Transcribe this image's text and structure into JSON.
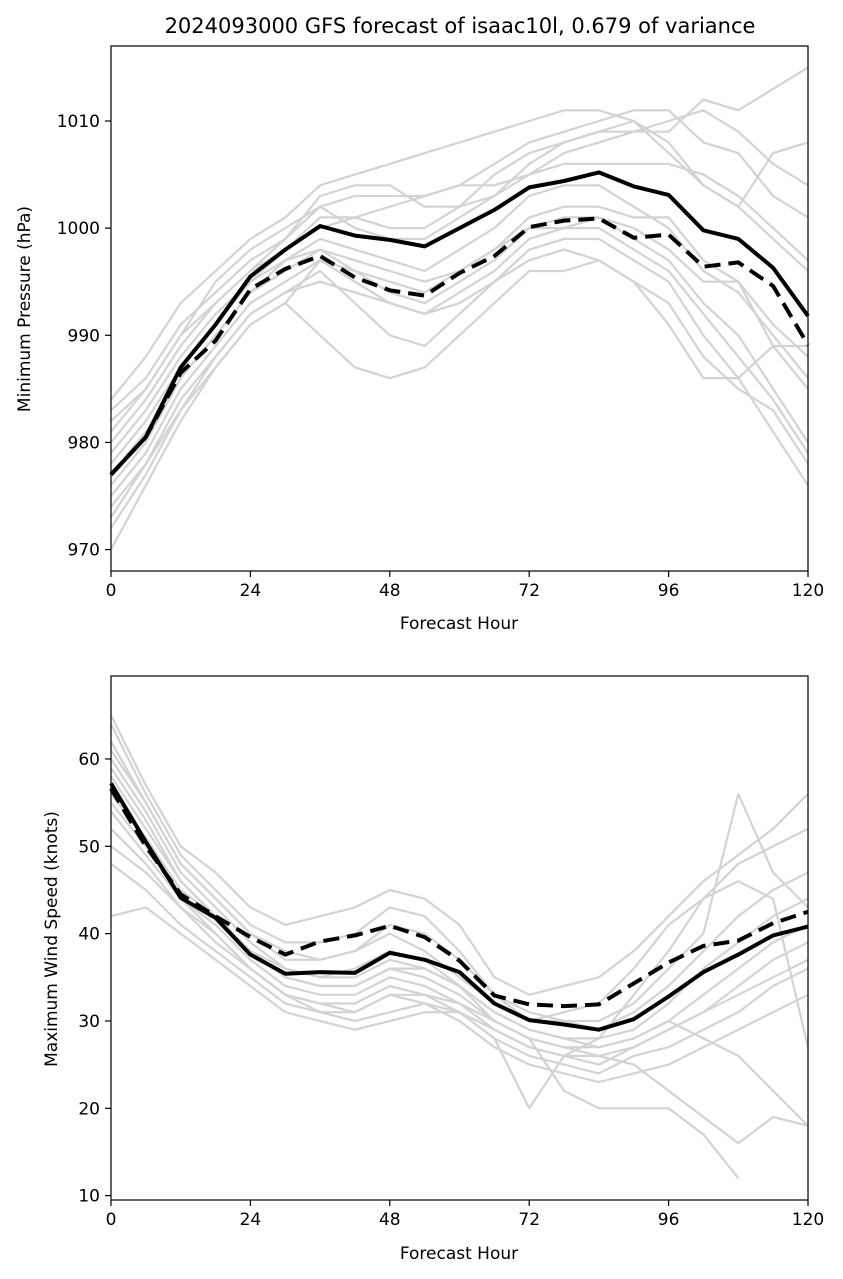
{
  "title": "2024093000 GFS forecast of isaac10l, 0.679 of variance",
  "chart_data": [
    {
      "type": "line",
      "xlabel": "Forecast Hour",
      "ylabel": "Minimum Pressure (hPa)",
      "xlim": [
        0,
        120
      ],
      "ylim": [
        968,
        1017
      ],
      "xticks": [
        0,
        24,
        48,
        72,
        96,
        120
      ],
      "yticks": [
        970,
        980,
        990,
        1000,
        1010
      ],
      "x": [
        0,
        6,
        12,
        18,
        24,
        30,
        36,
        42,
        48,
        54,
        60,
        66,
        72,
        78,
        84,
        90,
        96,
        102,
        108,
        114,
        120
      ],
      "series": [
        {
          "style": "solid-black",
          "values": [
            977,
            980.5,
            987,
            991,
            995.5,
            998,
            1000.2,
            999.3,
            998.9,
            998.3,
            1000,
            1001.7,
            1003.8,
            1004.4,
            1005.2,
            1003.9,
            1003.1,
            999.8,
            999,
            996.3,
            991.8
          ]
        },
        {
          "style": "dashed-black",
          "values": [
            977,
            980.5,
            986.5,
            989.5,
            994.3,
            996.2,
            997.4,
            995.4,
            994.2,
            993.7,
            995.8,
            997.4,
            1000.1,
            1000.7,
            1000.9,
            999.1,
            999.4,
            996.4,
            996.8,
            994.6,
            989.1
          ]
        },
        {
          "style": "grey-ensemble",
          "values": [
            983,
            986,
            991,
            994,
            997,
            999,
            1002,
            1003,
            1003,
            1003,
            1004,
            1006,
            1008,
            1009,
            1010,
            1011,
            1011,
            1008,
            1007,
            1003,
            1001
          ]
        },
        {
          "style": "grey-ensemble",
          "values": [
            981,
            985,
            990,
            993,
            996,
            998,
            1001,
            1001,
            1000,
            1000,
            1002,
            1005,
            1007,
            1008,
            1009,
            1010,
            1008,
            1004,
            1002,
            999,
            996
          ]
        },
        {
          "style": "grey-ensemble",
          "values": [
            979,
            983,
            988,
            992,
            995,
            997,
            999,
            998,
            997,
            996,
            998,
            1000,
            1003,
            1004,
            1004,
            1002,
            1000,
            996,
            994,
            990,
            986
          ]
        },
        {
          "style": "grey-ensemble",
          "values": [
            976,
            980,
            986,
            990,
            994,
            996,
            998,
            996,
            994,
            993,
            995,
            997,
            1000,
            1000,
            1001,
            999,
            997,
            993,
            990,
            985,
            980
          ]
        },
        {
          "style": "grey-ensemble",
          "values": [
            974,
            978,
            984,
            988,
            992,
            994,
            996,
            993,
            990,
            989,
            992,
            995,
            998,
            999,
            999,
            997,
            995,
            990,
            986,
            981,
            976
          ]
        },
        {
          "style": "grey-ensemble",
          "values": [
            972,
            977,
            983,
            987,
            991,
            993,
            990,
            987,
            986,
            987,
            990,
            993,
            996,
            996,
            997,
            995,
            993,
            988,
            985,
            983,
            978
          ]
        },
        {
          "style": "grey-ensemble",
          "values": [
            978,
            982,
            987,
            991,
            995,
            998,
            1000,
            1001,
            1002,
            1003,
            1004,
            1004,
            1005,
            1006,
            1006,
            1006,
            1006,
            1005,
            1003,
            1000,
            997
          ]
        },
        {
          "style": "grey-ensemble",
          "values": [
            980,
            984,
            989,
            993,
            996,
            999,
            1003,
            1004,
            1004,
            1002,
            1002,
            1003,
            1005,
            1007,
            1008,
            1009,
            1010,
            1011,
            1009,
            1006,
            1004
          ]
        },
        {
          "style": "grey-ensemble",
          "values": [
            982,
            985,
            990,
            995,
            998,
            1000,
            1002,
            1000,
            999,
            999,
            1001,
            1003,
            1006,
            1008,
            1009,
            1009,
            1009,
            1012,
            1011,
            1013,
            1015
          ]
        },
        {
          "style": "grey-ensemble",
          "values": [
            975,
            979,
            985,
            989,
            993,
            995,
            997,
            995,
            993,
            992,
            994,
            996,
            999,
            1000,
            1000,
            998,
            996,
            992,
            988,
            984,
            979
          ]
        },
        {
          "style": "grey-ensemble",
          "values": [
            984,
            988,
            993,
            996,
            999,
            1001,
            1004,
            1005,
            1006,
            1007,
            1008,
            1009,
            1010,
            1011,
            1011,
            1010,
            1007,
            1004,
            1002,
            1007,
            1008
          ]
        },
        {
          "style": "grey-ensemble",
          "values": [
            977,
            981,
            986,
            990,
            994,
            997,
            998,
            997,
            996,
            995,
            996,
            998,
            1001,
            1002,
            1002,
            1001,
            1001,
            997,
            995,
            989,
            985
          ]
        },
        {
          "style": "grey-ensemble",
          "values": [
            973,
            978,
            983,
            988,
            992,
            994,
            995,
            994,
            993,
            992,
            993,
            995,
            997,
            998,
            997,
            995,
            991,
            986,
            986,
            989,
            989
          ]
        },
        {
          "style": "grey-ensemble",
          "values": [
            970,
            976,
            982,
            987,
            991,
            993,
            997,
            996,
            995,
            994,
            996,
            998,
            1000,
            1001,
            1001,
            1000,
            998,
            995,
            995,
            991,
            988
          ]
        }
      ]
    },
    {
      "type": "line",
      "xlabel": "Forecast Hour",
      "ylabel": "Maximum Wind Speed (knots)",
      "xlim": [
        0,
        120
      ],
      "ylim": [
        9.5,
        69.5
      ],
      "xticks": [
        0,
        24,
        48,
        72,
        96,
        120
      ],
      "yticks": [
        10,
        20,
        30,
        40,
        50,
        60
      ],
      "x": [
        0,
        6,
        12,
        18,
        24,
        30,
        36,
        42,
        48,
        54,
        60,
        66,
        72,
        78,
        84,
        90,
        96,
        102,
        108,
        114,
        120
      ],
      "series": [
        {
          "style": "solid-black",
          "values": [
            57.2,
            50.5,
            44.1,
            41.8,
            37.6,
            35.4,
            35.6,
            35.5,
            37.8,
            37,
            35.6,
            32,
            30.1,
            29.6,
            29,
            30.2,
            32.8,
            35.6,
            37.6,
            39.8,
            40.8
          ]
        },
        {
          "style": "dashed-black",
          "values": [
            56.6,
            50,
            44.5,
            42,
            39.6,
            37.6,
            39.1,
            39.8,
            40.9,
            39.6,
            36.9,
            32.9,
            31.9,
            31.7,
            31.9,
            34.3,
            36.7,
            38.6,
            39.2,
            41.2,
            42.5
          ]
        },
        {
          "style": "grey-ensemble",
          "values": [
            62,
            55,
            48,
            44,
            40,
            38,
            37,
            38,
            40,
            38,
            35,
            32,
            30,
            30,
            29,
            31,
            34,
            38,
            42,
            45,
            47
          ]
        },
        {
          "style": "grey-ensemble",
          "values": [
            60,
            54,
            47,
            43,
            39,
            36,
            35,
            36,
            38,
            37,
            34,
            31,
            29,
            28,
            28,
            29,
            32,
            36,
            39,
            42,
            44
          ]
        },
        {
          "style": "grey-ensemble",
          "values": [
            58,
            52,
            46,
            42,
            38,
            35,
            34,
            34,
            36,
            35,
            33,
            30,
            28,
            27,
            27,
            28,
            30,
            33,
            36,
            39,
            41
          ]
        },
        {
          "style": "grey-ensemble",
          "values": [
            55,
            50,
            44,
            41,
            37,
            34,
            33,
            33,
            35,
            34,
            32,
            29,
            27,
            26,
            26,
            27,
            29,
            31,
            34,
            37,
            39
          ]
        },
        {
          "style": "grey-ensemble",
          "values": [
            52,
            48,
            43,
            40,
            36,
            33,
            32,
            32,
            34,
            33,
            31,
            28,
            26,
            25,
            24,
            26,
            27,
            29,
            31,
            34,
            36
          ]
        },
        {
          "style": "grey-ensemble",
          "values": [
            48,
            45,
            41,
            38,
            35,
            32,
            31,
            31,
            33,
            32,
            30,
            27,
            25,
            24,
            23,
            24,
            25,
            27,
            29,
            31,
            33
          ]
        },
        {
          "style": "grey-ensemble",
          "values": [
            65,
            57,
            50,
            47,
            43,
            41,
            42,
            43,
            45,
            44,
            41,
            35,
            33,
            34,
            35,
            38,
            42,
            46,
            49,
            52,
            56
          ]
        },
        {
          "style": "grey-ensemble",
          "values": [
            42,
            43,
            40,
            37,
            34,
            31,
            30,
            29,
            30,
            31,
            31,
            28,
            20,
            26,
            28,
            33,
            38,
            44,
            48,
            50,
            52
          ]
        },
        {
          "style": "grey-ensemble",
          "values": [
            64,
            56,
            49,
            45,
            41,
            39,
            39,
            40,
            43,
            42,
            38,
            33,
            30,
            31,
            32,
            36,
            41,
            44,
            46,
            44,
            27
          ]
        },
        {
          "style": "grey-ensemble",
          "values": [
            56,
            51,
            45,
            42,
            38,
            35,
            34,
            34,
            36,
            36,
            34,
            31,
            29,
            28,
            27,
            28,
            30,
            28,
            26,
            22,
            18
          ]
        },
        {
          "style": "grey-ensemble",
          "values": [
            50,
            47,
            43,
            39,
            36,
            33,
            32,
            31,
            33,
            33,
            32,
            30,
            28,
            27,
            26,
            25,
            22,
            19,
            16,
            19,
            18
          ]
        },
        {
          "style": "grey-ensemble",
          "values": [
            59,
            53,
            46,
            42,
            38,
            36,
            35,
            35,
            37,
            36,
            34,
            30,
            28,
            22,
            20,
            20,
            20,
            17,
            12,
            null,
            null
          ]
        },
        {
          "style": "grey-ensemble",
          "values": [
            61,
            55,
            48,
            44,
            40,
            37,
            37,
            38,
            41,
            40,
            37,
            33,
            31,
            30,
            30,
            32,
            36,
            40,
            56,
            47,
            43
          ]
        },
        {
          "style": "grey-ensemble",
          "values": [
            54,
            49,
            44,
            40,
            36,
            33,
            31,
            30,
            31,
            32,
            31,
            29,
            27,
            26,
            25,
            27,
            29,
            31,
            33,
            35,
            37
          ]
        }
      ]
    }
  ]
}
